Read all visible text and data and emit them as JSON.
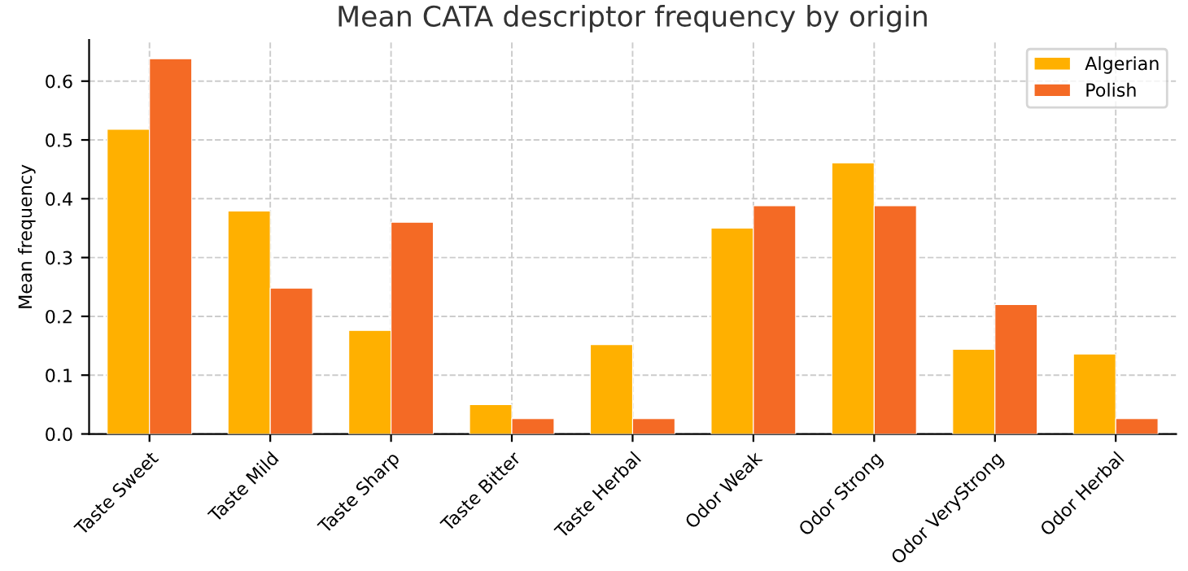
{
  "chart_data": {
    "type": "bar",
    "title": "Mean CATA descriptor frequency by origin",
    "ylabel": "Mean frequency",
    "categories": [
      "Taste Sweet",
      "Taste Mild",
      "Taste Sharp",
      "Taste Bitter",
      "Taste Herbal",
      "Odor Weak",
      "Odor Strong",
      "Odor VeryStrong",
      "Odor Herbal"
    ],
    "series": [
      {
        "name": "Algerian",
        "color": "#ffb000",
        "values": [
          0.518,
          0.379,
          0.176,
          0.05,
          0.152,
          0.35,
          0.461,
          0.144,
          0.136
        ]
      },
      {
        "name": "Polish",
        "color": "#f46a25",
        "values": [
          0.638,
          0.248,
          0.36,
          0.026,
          0.026,
          0.388,
          0.388,
          0.22,
          0.026
        ]
      }
    ],
    "ylim": [
      0,
      0.67
    ],
    "yticks": [
      {
        "value": 0,
        "label": "0.0"
      },
      0.1,
      0.2,
      0.3,
      0.4,
      0.5,
      0.6
    ],
    "grid": true,
    "legend": "top right"
  }
}
